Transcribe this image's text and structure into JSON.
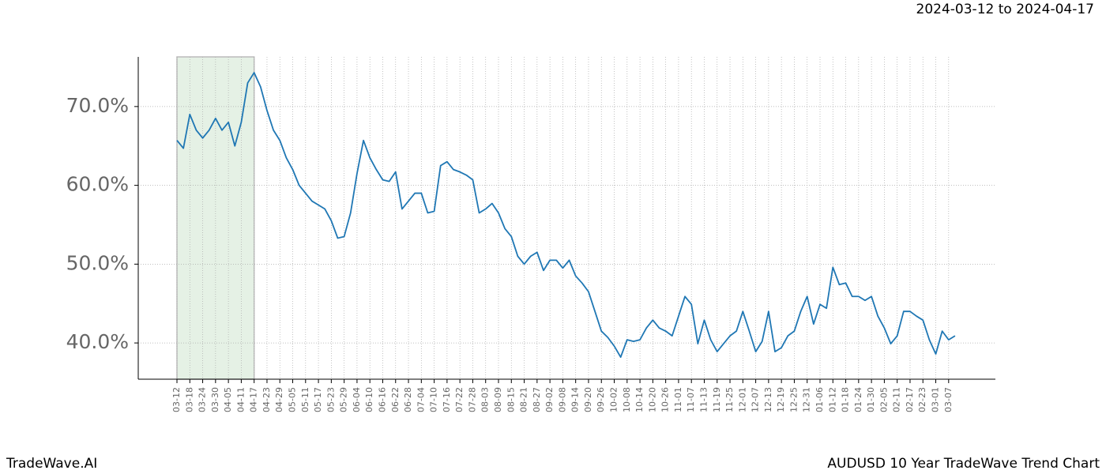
{
  "chart_data": {
    "type": "line",
    "title": "2024-03-12 to 2024-04-17",
    "categories": [
      "03-12",
      null,
      "03-18",
      null,
      "03-24",
      null,
      "03-30",
      null,
      "04-05",
      null,
      "04-11",
      null,
      "04-17",
      null,
      "04-23",
      null,
      "04-29",
      null,
      "05-05",
      null,
      "05-11",
      null,
      "05-17",
      null,
      "05-23",
      null,
      "05-29",
      null,
      "06-04",
      null,
      "06-10",
      null,
      "06-16",
      null,
      "06-22",
      null,
      "06-28",
      null,
      "07-04",
      null,
      "07-10",
      null,
      "07-16",
      null,
      "07-22",
      null,
      "07-28",
      null,
      "08-03",
      null,
      "08-09",
      null,
      "08-15",
      null,
      "08-21",
      null,
      "08-27",
      null,
      "09-02",
      null,
      "09-08",
      null,
      "09-14",
      null,
      "09-20",
      null,
      "09-26",
      null,
      "10-02",
      null,
      "10-08",
      null,
      "10-14",
      null,
      "10-20",
      null,
      "10-26",
      null,
      "11-01",
      null,
      "11-07",
      null,
      "11-13",
      null,
      "11-19",
      null,
      "11-25",
      null,
      "12-01",
      null,
      "12-07",
      null,
      "12-13",
      null,
      "12-19",
      null,
      "12-25",
      null,
      "12-31",
      null,
      "01-06",
      null,
      "01-12",
      null,
      "01-18",
      null,
      "01-24",
      null,
      "01-30",
      null,
      "02-05",
      null,
      "02-11",
      null,
      "02-17",
      null,
      "02-23",
      null,
      "03-01",
      null,
      "03-07",
      null
    ],
    "series": [
      {
        "color": "#1f77b4",
        "values": [
          65.7,
          64.7,
          69,
          67,
          66,
          67,
          68.5,
          67,
          68,
          65,
          68,
          73,
          74.3,
          72.5,
          69.5,
          67,
          65.7,
          63.5,
          62,
          60,
          59,
          58,
          57.5,
          57,
          55.5,
          53.3,
          53.5,
          56.5,
          61.5,
          65.7,
          63.5,
          62,
          60.7,
          60.5,
          61.7,
          57,
          58,
          59,
          59,
          56.5,
          56.7,
          62.5,
          63,
          62,
          61.7,
          61.3,
          60.7,
          56.5,
          57,
          57.7,
          56.5,
          54.5,
          53.5,
          51,
          50,
          51,
          51.5,
          49.2,
          50.5,
          50.5,
          49.5,
          50.5,
          48.5,
          47.6,
          46.5,
          44,
          41.5,
          40.7,
          39.6,
          38.2,
          40.4,
          40.2,
          40.4,
          41.9,
          42.9,
          41.9,
          41.5,
          40.9,
          43.4,
          45.9,
          44.9,
          39.9,
          42.9,
          40.4,
          38.9,
          39.9,
          40.9,
          41.5,
          44,
          41.5,
          38.9,
          40.2,
          44,
          38.9,
          39.4,
          40.9,
          41.5,
          44,
          45.9,
          42.4,
          44.9,
          44.4,
          49.6,
          47.4,
          47.6,
          45.9,
          45.9,
          45.4,
          45.9,
          43.4,
          41.9,
          39.9,
          40.9,
          44,
          44,
          43.4,
          42.9,
          40.4,
          38.6,
          41.5,
          40.4,
          40.9
        ]
      }
    ],
    "ylim": [
      35.4,
      76.3
    ],
    "yticks": [
      {
        "value": 40,
        "label": "40.0%"
      },
      {
        "value": 50,
        "label": "50.0%"
      },
      {
        "value": 60,
        "label": "60.0%"
      },
      {
        "value": 70,
        "label": "70.0%"
      }
    ],
    "grid": true,
    "shade": {
      "from": 0,
      "to": 12,
      "color": "#e5f1e5"
    }
  },
  "footer": {
    "left": "TradeWave.AI",
    "right": "AUDUSD 10 Year TradeWave Trend Chart"
  }
}
